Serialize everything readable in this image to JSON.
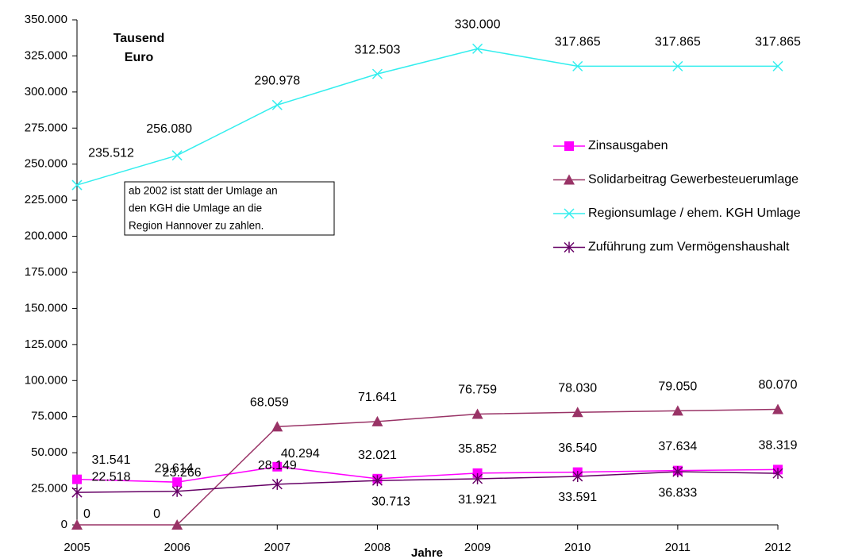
{
  "chart_data": {
    "type": "line",
    "y_label_lines": [
      "Tausend",
      "Euro"
    ],
    "x_label": "Jahre",
    "annotation_lines": [
      "ab 2002 ist statt der Umlage an",
      "den KGH die Umlage an die",
      "Region Hannover zu zahlen."
    ],
    "categories": [
      "2005",
      "2006",
      "2007",
      "2008",
      "2009",
      "2010",
      "2011",
      "2012"
    ],
    "ylim": [
      0,
      350000
    ],
    "yticks": [
      0,
      {
        "value": 25000,
        "label": "25.000"
      },
      {
        "value": 50000,
        "label": "50.000"
      },
      {
        "value": 75000,
        "label": "75.000"
      },
      {
        "value": 100000,
        "label": "100.000"
      },
      {
        "value": 125000,
        "label": "125.000"
      },
      {
        "value": 150000,
        "label": "150.000"
      },
      {
        "value": 175000,
        "label": "175.000"
      },
      {
        "value": 200000,
        "label": "200.000"
      },
      {
        "value": 225000,
        "label": "225.000"
      },
      {
        "value": 250000,
        "label": "250.000"
      },
      {
        "value": 275000,
        "label": "275.000"
      },
      {
        "value": 300000,
        "label": "300.000"
      },
      {
        "value": 325000,
        "label": "325.000"
      },
      {
        "value": 350000,
        "label": "350.000"
      }
    ],
    "legend": "right",
    "series": [
      {
        "name": "Zinsausgaben",
        "color": "#ff00ff",
        "marker": "square",
        "values": [
          31541,
          29614,
          40294,
          32021,
          35852,
          36540,
          37634,
          38319
        ],
        "value_labels": [
          "31.541",
          "29.614",
          "40.294",
          "32.021",
          "35.852",
          "36.540",
          "37.634",
          "38.319"
        ]
      },
      {
        "name": "Solidarbeitrag Gewerbesteuerumlage",
        "color": "#993366",
        "marker": "triangle",
        "values": [
          0,
          0,
          68059,
          71641,
          76759,
          78030,
          79050,
          80070
        ],
        "value_labels": [
          "0",
          "0",
          "68.059",
          "71.641",
          "76.759",
          "78.030",
          "79.050",
          "80.070"
        ]
      },
      {
        "name": "Regionsumlage / ehem. KGH Umlage",
        "color": "#33eeee",
        "marker": "x",
        "values": [
          235512,
          256080,
          290978,
          312503,
          330000,
          317865,
          317865,
          317865
        ],
        "value_labels": [
          "235.512",
          "256.080",
          "290.978",
          "312.503",
          "330.000",
          "317.865",
          "317.865",
          "317.865"
        ]
      },
      {
        "name": "Zuführung zum Vermögenshaushalt",
        "color": "#660066",
        "marker": "star",
        "values": [
          22518,
          23266,
          28149,
          30713,
          31921,
          33591,
          36833,
          35700
        ],
        "value_labels": [
          "22.518",
          "23.266",
          "28.149",
          "30.713",
          "31.921",
          "33.591",
          "36.833",
          null
        ]
      }
    ]
  }
}
